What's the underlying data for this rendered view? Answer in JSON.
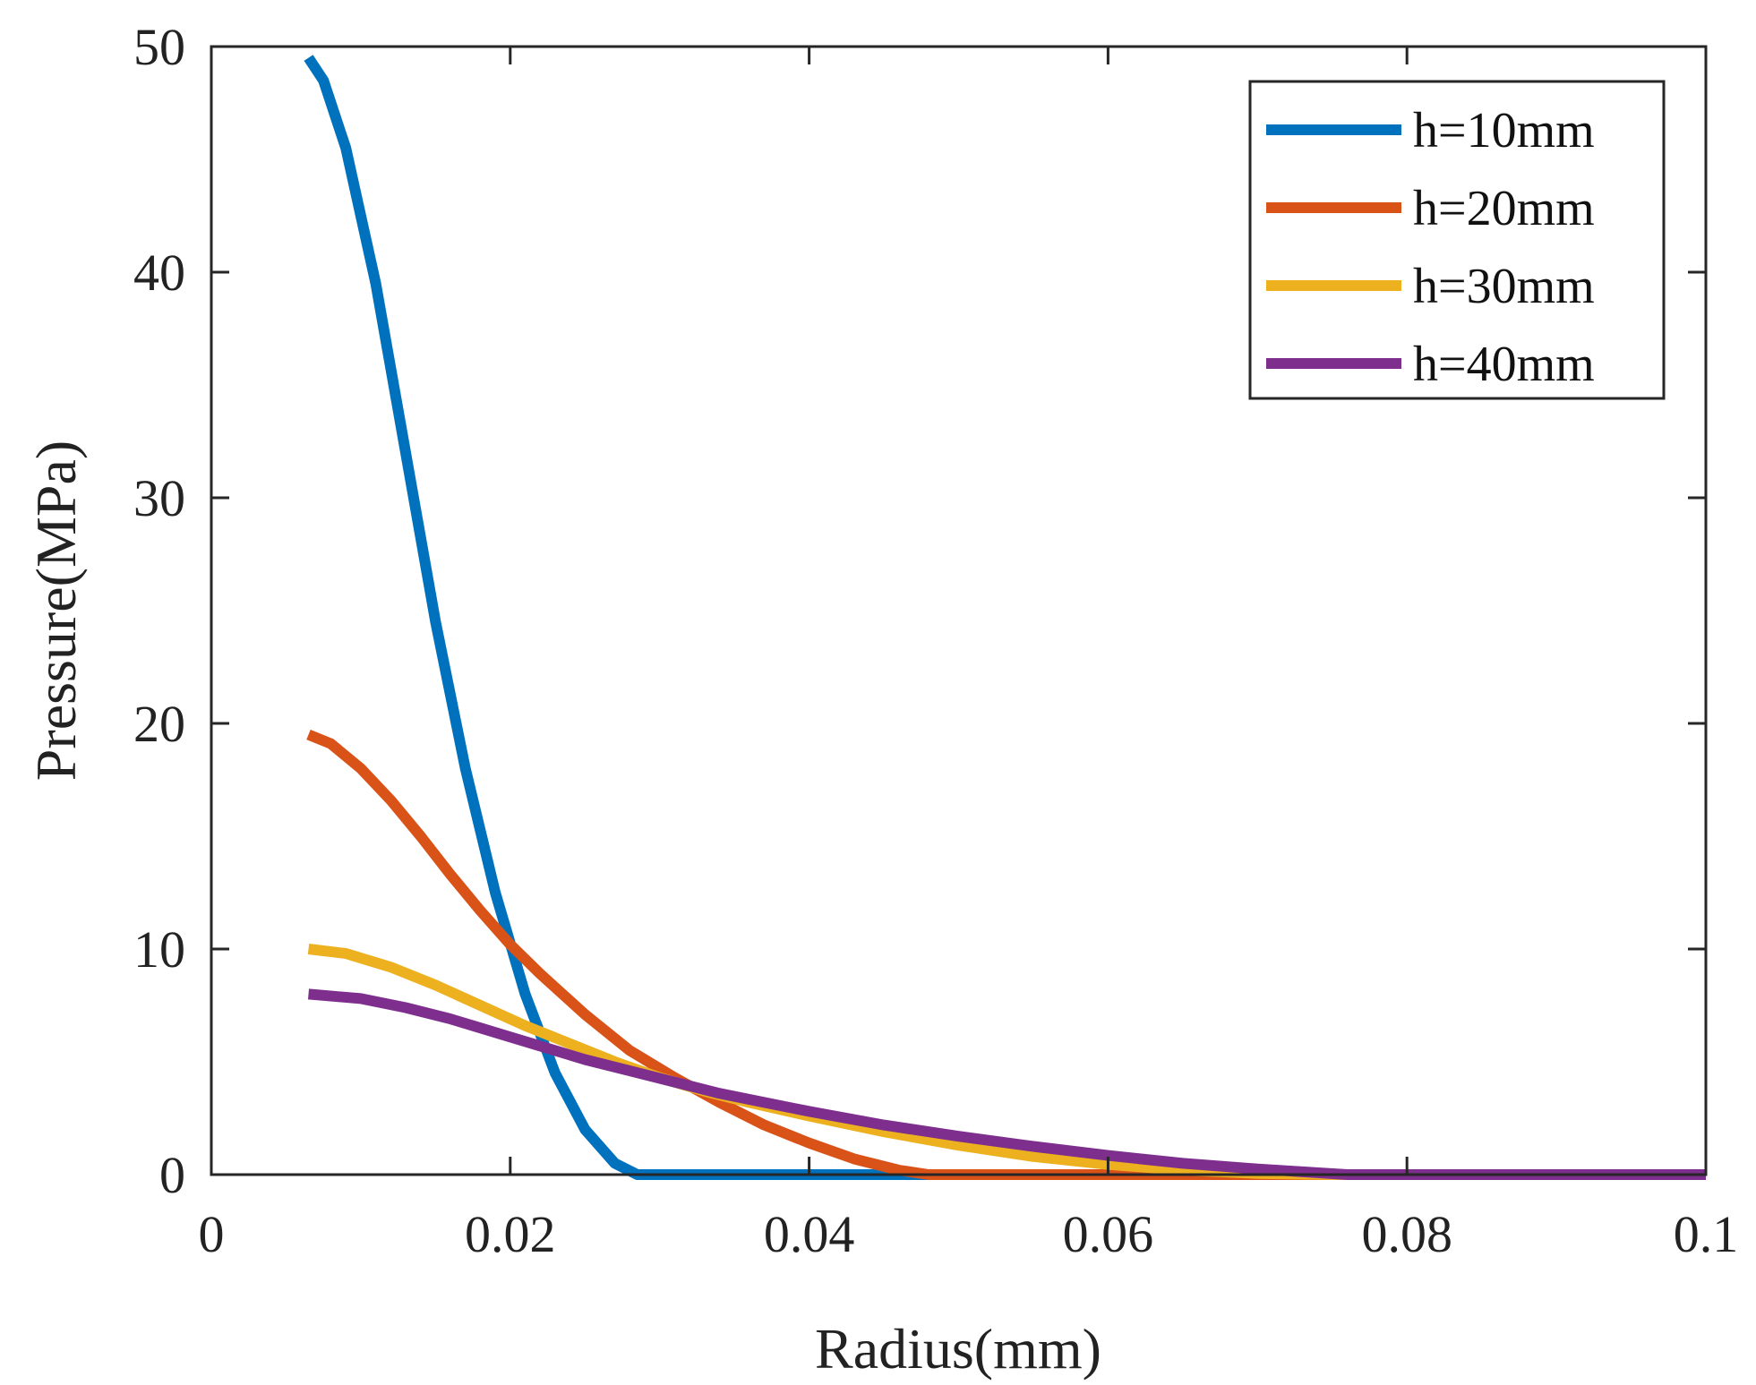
{
  "chart_data": {
    "type": "line",
    "title": "",
    "xlabel": "Radius(mm)",
    "ylabel": "Pressure(MPa)",
    "xlim": [
      0,
      0.1
    ],
    "ylim": [
      0,
      50
    ],
    "xticks": [
      0,
      0.02,
      0.04,
      0.06,
      0.08,
      0.1
    ],
    "xtick_labels": [
      "0",
      "0.02",
      "0.04",
      "0.06",
      "0.08",
      "0.1"
    ],
    "yticks": [
      0,
      10,
      20,
      30,
      40,
      50
    ],
    "ytick_labels": [
      "0",
      "10",
      "20",
      "30",
      "40",
      "50"
    ],
    "grid": false,
    "legend_position": "top-right",
    "series": [
      {
        "name": "h=10mm",
        "color": "#0072BD",
        "x": [
          0.0065,
          0.0075,
          0.009,
          0.011,
          0.013,
          0.015,
          0.017,
          0.019,
          0.021,
          0.023,
          0.025,
          0.027,
          0.0285,
          0.03,
          0.04,
          0.06,
          0.08,
          0.1
        ],
        "y": [
          49.5,
          48.5,
          45.5,
          39.5,
          32.0,
          24.5,
          18.0,
          12.5,
          8.0,
          4.5,
          2.0,
          0.5,
          0,
          0,
          0,
          0,
          0,
          0
        ]
      },
      {
        "name": "h=20mm",
        "color": "#D95319",
        "x": [
          0.0065,
          0.008,
          0.01,
          0.012,
          0.014,
          0.016,
          0.018,
          0.02,
          0.022,
          0.025,
          0.028,
          0.031,
          0.034,
          0.037,
          0.04,
          0.043,
          0.046,
          0.048,
          0.06,
          0.08,
          0.1
        ],
        "y": [
          19.5,
          19.1,
          18.0,
          16.6,
          15.0,
          13.3,
          11.7,
          10.2,
          8.9,
          7.1,
          5.5,
          4.3,
          3.2,
          2.2,
          1.4,
          0.7,
          0.2,
          0,
          0,
          0,
          0
        ]
      },
      {
        "name": "h=30mm",
        "color": "#EDB120",
        "x": [
          0.0065,
          0.009,
          0.012,
          0.015,
          0.018,
          0.021,
          0.024,
          0.027,
          0.03,
          0.033,
          0.036,
          0.04,
          0.045,
          0.05,
          0.055,
          0.06,
          0.065,
          0.07,
          0.075,
          0.1
        ],
        "y": [
          10.0,
          9.8,
          9.2,
          8.4,
          7.5,
          6.6,
          5.8,
          5.0,
          4.3,
          3.7,
          3.2,
          2.6,
          1.9,
          1.3,
          0.8,
          0.45,
          0.2,
          0.05,
          0,
          0
        ]
      },
      {
        "name": "h=40mm",
        "color": "#7E2F8E",
        "x": [
          0.0065,
          0.01,
          0.013,
          0.016,
          0.019,
          0.022,
          0.025,
          0.028,
          0.031,
          0.034,
          0.037,
          0.04,
          0.045,
          0.05,
          0.055,
          0.06,
          0.065,
          0.07,
          0.076,
          0.1
        ],
        "y": [
          8.0,
          7.8,
          7.4,
          6.9,
          6.3,
          5.7,
          5.1,
          4.6,
          4.1,
          3.6,
          3.2,
          2.8,
          2.2,
          1.7,
          1.25,
          0.85,
          0.5,
          0.25,
          0,
          0
        ]
      }
    ]
  }
}
